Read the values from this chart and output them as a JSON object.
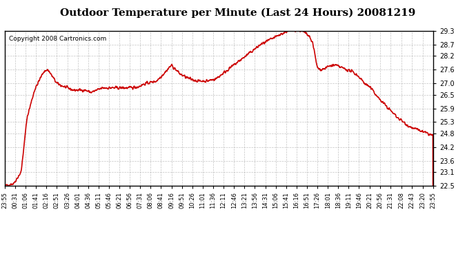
{
  "title": "Outdoor Temperature per Minute (Last 24 Hours) 20081219",
  "copyright_text": "Copyright 2008 Cartronics.com",
  "line_color": "#cc0000",
  "background_color": "#ffffff",
  "grid_color": "#aaaaaa",
  "border_color": "#000000",
  "y_ticks": [
    22.5,
    23.1,
    23.6,
    24.2,
    24.8,
    25.3,
    25.9,
    26.5,
    27.0,
    27.6,
    28.2,
    28.7,
    29.3
  ],
  "ylim": [
    22.5,
    29.3
  ],
  "x_tick_labels": [
    "23:55",
    "00:31",
    "01:06",
    "01:41",
    "02:16",
    "02:51",
    "03:26",
    "04:01",
    "04:36",
    "05:11",
    "05:46",
    "06:21",
    "06:56",
    "07:31",
    "08:06",
    "08:41",
    "09:16",
    "09:51",
    "10:26",
    "11:01",
    "11:36",
    "12:11",
    "12:46",
    "13:21",
    "13:56",
    "14:31",
    "15:06",
    "15:41",
    "16:16",
    "16:51",
    "17:26",
    "18:01",
    "18:36",
    "19:11",
    "19:46",
    "20:21",
    "20:56",
    "21:31",
    "22:08",
    "22:43",
    "23:20",
    "23:55"
  ],
  "line_width": 1.2
}
